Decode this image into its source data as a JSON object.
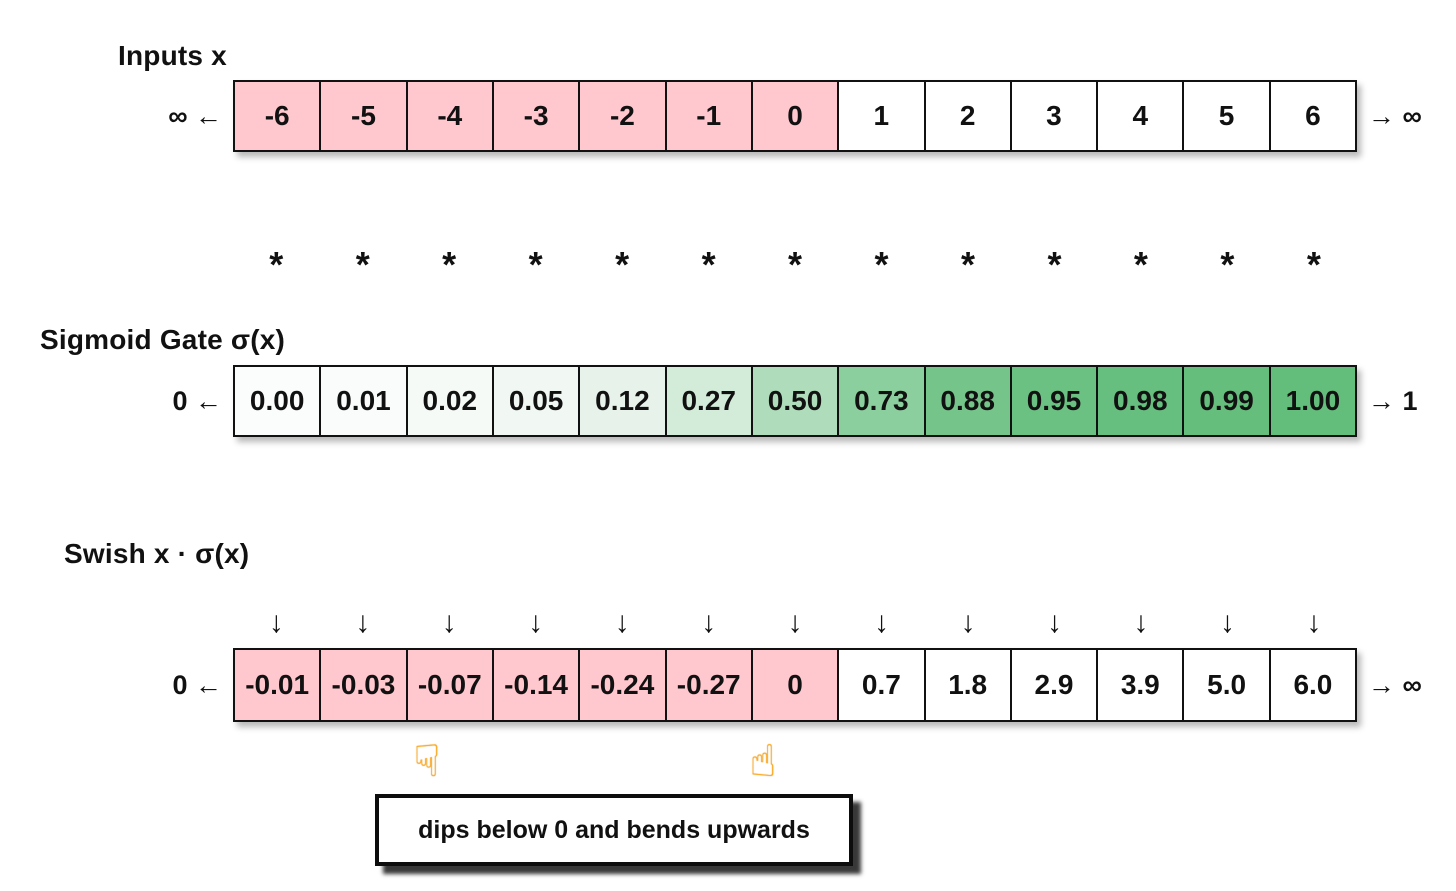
{
  "figure": {
    "title_semantic": "Swish activation walkthrough",
    "rows": [
      {
        "name": "inputs",
        "label": "Inputs x",
        "left_annotation": "∞ ←",
        "right_annotation": "→ ∞",
        "cells": [
          {
            "value": "-6",
            "bg": "#FFC7CE"
          },
          {
            "value": "-5",
            "bg": "#FFC7CE"
          },
          {
            "value": "-4",
            "bg": "#FFC7CE"
          },
          {
            "value": "-3",
            "bg": "#FFC7CE"
          },
          {
            "value": "-2",
            "bg": "#FFC7CE"
          },
          {
            "value": "-1",
            "bg": "#FFC7CE"
          },
          {
            "value": "0",
            "bg": "#FFC7CE"
          },
          {
            "value": "1",
            "bg": "#FFFFFF"
          },
          {
            "value": "2",
            "bg": "#FFFFFF"
          },
          {
            "value": "3",
            "bg": "#FFFFFF"
          },
          {
            "value": "4",
            "bg": "#FFFFFF"
          },
          {
            "value": "5",
            "bg": "#FFFFFF"
          },
          {
            "value": "6",
            "bg": "#FFFFFF"
          }
        ]
      },
      {
        "name": "sigmoid",
        "label": "Sigmoid Gate σ(x)",
        "left_annotation": "0 ←",
        "right_annotation": "→ 1",
        "cells": [
          {
            "value": "0.00",
            "bg": "#FBFDFC"
          },
          {
            "value": "0.01",
            "bg": "#F9FCFA"
          },
          {
            "value": "0.02",
            "bg": "#F6FAF7"
          },
          {
            "value": "0.05",
            "bg": "#F1F8F3"
          },
          {
            "value": "0.12",
            "bg": "#E7F3EA"
          },
          {
            "value": "0.27",
            "bg": "#D3EBD9"
          },
          {
            "value": "0.50",
            "bg": "#AFDDBB"
          },
          {
            "value": "0.73",
            "bg": "#8CCF9E"
          },
          {
            "value": "0.88",
            "bg": "#75C58A"
          },
          {
            "value": "0.95",
            "bg": "#6BC182"
          },
          {
            "value": "0.98",
            "bg": "#66BF7E"
          },
          {
            "value": "0.99",
            "bg": "#65BE7C"
          },
          {
            "value": "1.00",
            "bg": "#63BE7B"
          }
        ]
      },
      {
        "name": "swish",
        "label": "Swish x · σ(x)",
        "left_annotation": "0 ←",
        "right_annotation": "→ ∞",
        "cells": [
          {
            "value": "-0.01",
            "bg": "#FFC7CE"
          },
          {
            "value": "-0.03",
            "bg": "#FFC7CE"
          },
          {
            "value": "-0.07",
            "bg": "#FFC7CE"
          },
          {
            "value": "-0.14",
            "bg": "#FFC7CE"
          },
          {
            "value": "-0.24",
            "bg": "#FFC7CE"
          },
          {
            "value": "-0.27",
            "bg": "#FFC7CE"
          },
          {
            "value": "0",
            "bg": "#FFC7CE"
          },
          {
            "value": "0.7",
            "bg": "#FFFFFF"
          },
          {
            "value": "1.8",
            "bg": "#FFFFFF"
          },
          {
            "value": "2.9",
            "bg": "#FFFFFF"
          },
          {
            "value": "3.9",
            "bg": "#FFFFFF"
          },
          {
            "value": "5.0",
            "bg": "#FFFFFF"
          },
          {
            "value": "6.0",
            "bg": "#FFFFFF"
          }
        ]
      }
    ],
    "multiply_row": {
      "name": "multiply-asterisk",
      "symbol": "*",
      "count": 13
    },
    "arrow_row": {
      "name": "down-arrow-icon",
      "symbol": "↓",
      "count": 13
    },
    "pointers": [
      {
        "name": "pointing-down-hand",
        "glyph": "☟"
      },
      {
        "name": "pointing-up-hand",
        "glyph": "☝"
      }
    ],
    "callout": {
      "text": "dips below 0 and bends upwards"
    },
    "colors": {
      "negative_bg": "#FFC7CE",
      "positive_bg": "#FFFFFF",
      "gate_full_open": "#63BE7B",
      "border": "#111111",
      "pointer_hand": "#FFAD28"
    }
  }
}
